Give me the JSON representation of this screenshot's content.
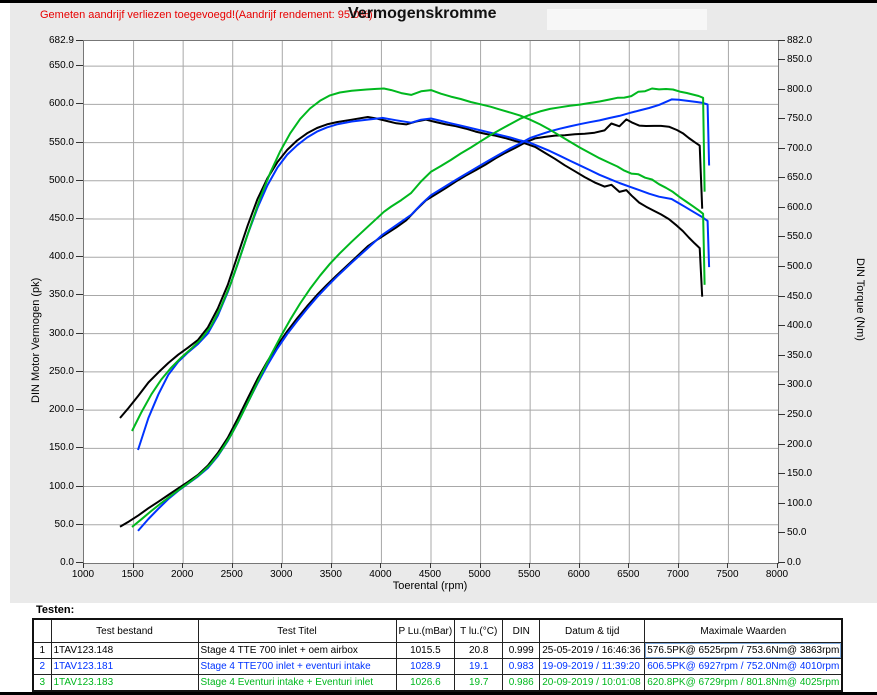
{
  "header": {
    "note": "Gemeten aandrijf verliezen toegevoegd!(Aandrijf rendement: 95.0%)",
    "title": "Vermogenskromme"
  },
  "chart_data": {
    "type": "line",
    "title": "Vermogenskromme",
    "xlabel": "Toerental (rpm)",
    "ylabel_left": "DIN Motor Vermogen (pk)",
    "ylabel_right": "DIN Torque (Nm)",
    "x_range": [
      1000,
      8000
    ],
    "left_axis_max": 682.9,
    "right_axis_max": 882.0,
    "x_ticks": [
      1000,
      1500,
      2000,
      2500,
      3000,
      3500,
      4000,
      4500,
      5000,
      5500,
      6000,
      6500,
      7000,
      7500,
      8000
    ],
    "left_ticks": [
      682.9,
      650.0,
      600.0,
      550.0,
      500.0,
      450.0,
      400.0,
      350.0,
      300.0,
      250.0,
      200.0,
      150.0,
      100.0,
      50.0,
      0.0
    ],
    "right_ticks": [
      882.0,
      850.0,
      800.0,
      750.0,
      700.0,
      650.0,
      600.0,
      550.0,
      500.0,
      450.0,
      400.0,
      350.0,
      300.0,
      250.0,
      200.0,
      150.0,
      100.0,
      50.0,
      0.0
    ],
    "grid": true,
    "power_note": "power curve derived from torque: pk = Nm * rpm / 7024 (both curves per test)",
    "series": [
      {
        "name": "Stage 4 TTE 700  inlet + oem airbox",
        "color": "#000000",
        "max_power": "576.5PK@ 6525rpm",
        "max_torque": "753.6Nm@ 3863rpm",
        "torque_points": [
          [
            1363,
            245
          ],
          [
            1450,
            262
          ],
          [
            1550,
            283
          ],
          [
            1650,
            305
          ],
          [
            1750,
            322
          ],
          [
            1850,
            338
          ],
          [
            1950,
            352
          ],
          [
            2050,
            364
          ],
          [
            2150,
            377
          ],
          [
            2250,
            398
          ],
          [
            2350,
            430
          ],
          [
            2450,
            470
          ],
          [
            2550,
            520
          ],
          [
            2650,
            570
          ],
          [
            2750,
            615
          ],
          [
            2850,
            650
          ],
          [
            2950,
            677
          ],
          [
            3050,
            698
          ],
          [
            3150,
            714
          ],
          [
            3250,
            726
          ],
          [
            3350,
            735
          ],
          [
            3450,
            741
          ],
          [
            3550,
            745
          ],
          [
            3700,
            749
          ],
          [
            3863,
            753.6
          ],
          [
            3950,
            751
          ],
          [
            4050,
            747
          ],
          [
            4150,
            743
          ],
          [
            4250,
            741
          ],
          [
            4350,
            746
          ],
          [
            4450,
            749
          ],
          [
            4550,
            745
          ],
          [
            4650,
            741
          ],
          [
            4750,
            738
          ],
          [
            4850,
            734
          ],
          [
            4950,
            729
          ],
          [
            5050,
            725
          ],
          [
            5150,
            722
          ],
          [
            5250,
            718
          ],
          [
            5350,
            713
          ],
          [
            5450,
            709
          ],
          [
            5550,
            703
          ],
          [
            5650,
            693
          ],
          [
            5750,
            683
          ],
          [
            5850,
            672
          ],
          [
            5950,
            662
          ],
          [
            6050,
            652
          ],
          [
            6150,
            643
          ],
          [
            6250,
            636
          ],
          [
            6320,
            639
          ],
          [
            6400,
            627
          ],
          [
            6470,
            630
          ],
          [
            6525,
            620.5
          ],
          [
            6600,
            609
          ],
          [
            6670,
            602
          ],
          [
            6750,
            595
          ],
          [
            6820,
            589
          ],
          [
            6900,
            581
          ],
          [
            6980,
            570
          ],
          [
            7040,
            561
          ],
          [
            7100,
            550
          ],
          [
            7160,
            540
          ],
          [
            7210,
            532
          ],
          [
            7235,
            450
          ]
        ]
      },
      {
        "name": "Stage 4 TTE700 inlet + eventuri intake",
        "color": "#0033ff",
        "max_power": "606.5PK@ 6927rpm",
        "max_torque": "752.0Nm@ 4010rpm",
        "torque_points": [
          [
            1545,
            191
          ],
          [
            1650,
            245
          ],
          [
            1750,
            285
          ],
          [
            1850,
            318
          ],
          [
            1950,
            340
          ],
          [
            2050,
            356
          ],
          [
            2150,
            370
          ],
          [
            2250,
            388
          ],
          [
            2350,
            418
          ],
          [
            2450,
            458
          ],
          [
            2550,
            505
          ],
          [
            2650,
            555
          ],
          [
            2750,
            600
          ],
          [
            2850,
            638
          ],
          [
            2950,
            668
          ],
          [
            3050,
            690
          ],
          [
            3150,
            706
          ],
          [
            3250,
            719
          ],
          [
            3350,
            729
          ],
          [
            3450,
            736
          ],
          [
            3550,
            741
          ],
          [
            3700,
            746
          ],
          [
            3850,
            749
          ],
          [
            4010,
            752
          ],
          [
            4150,
            748
          ],
          [
            4300,
            744
          ],
          [
            4400,
            749
          ],
          [
            4500,
            751
          ],
          [
            4600,
            747
          ],
          [
            4700,
            743
          ],
          [
            4800,
            739
          ],
          [
            4900,
            735
          ],
          [
            5000,
            731
          ],
          [
            5100,
            727
          ],
          [
            5200,
            723
          ],
          [
            5300,
            719
          ],
          [
            5400,
            714
          ],
          [
            5500,
            710
          ],
          [
            5600,
            703
          ],
          [
            5700,
            696
          ],
          [
            5800,
            688
          ],
          [
            5900,
            680
          ],
          [
            6000,
            672
          ],
          [
            6100,
            664
          ],
          [
            6200,
            656
          ],
          [
            6300,
            649
          ],
          [
            6400,
            642
          ],
          [
            6500,
            636
          ],
          [
            6600,
            630
          ],
          [
            6700,
            624
          ],
          [
            6800,
            619
          ],
          [
            6927,
            615
          ],
          [
            7000,
            608
          ],
          [
            7060,
            602
          ],
          [
            7120,
            596
          ],
          [
            7180,
            590
          ],
          [
            7240,
            584
          ],
          [
            7290,
            578
          ],
          [
            7305,
            500
          ]
        ]
      },
      {
        "name": "Stage 4 Eventuri intake + Eventuri inlet",
        "color": "#00b81e",
        "max_power": "620.8PK@ 6729rpm",
        "max_torque": "801.8Nm@ 4025rpm",
        "torque_points": [
          [
            1484,
            223
          ],
          [
            1580,
            255
          ],
          [
            1680,
            285
          ],
          [
            1780,
            310
          ],
          [
            1880,
            330
          ],
          [
            1980,
            347
          ],
          [
            2080,
            362
          ],
          [
            2180,
            378
          ],
          [
            2280,
            400
          ],
          [
            2380,
            432
          ],
          [
            2480,
            472
          ],
          [
            2580,
            520
          ],
          [
            2680,
            570
          ],
          [
            2780,
            618
          ],
          [
            2880,
            660
          ],
          [
            2980,
            696
          ],
          [
            3080,
            726
          ],
          [
            3180,
            750
          ],
          [
            3280,
            768
          ],
          [
            3380,
            781
          ],
          [
            3480,
            790
          ],
          [
            3580,
            795
          ],
          [
            3700,
            798
          ],
          [
            3850,
            800
          ],
          [
            3950,
            801
          ],
          [
            4025,
            801.8
          ],
          [
            4100,
            799
          ],
          [
            4200,
            794
          ],
          [
            4300,
            791
          ],
          [
            4400,
            797
          ],
          [
            4500,
            799
          ],
          [
            4600,
            793
          ],
          [
            4700,
            788
          ],
          [
            4800,
            784
          ],
          [
            4900,
            779
          ],
          [
            5000,
            775
          ],
          [
            5100,
            771
          ],
          [
            5200,
            766
          ],
          [
            5300,
            761
          ],
          [
            5400,
            756
          ],
          [
            5500,
            749
          ],
          [
            5600,
            741
          ],
          [
            5700,
            732
          ],
          [
            5800,
            722
          ],
          [
            5900,
            712
          ],
          [
            6000,
            702
          ],
          [
            6100,
            693
          ],
          [
            6200,
            684
          ],
          [
            6300,
            676
          ],
          [
            6380,
            670
          ],
          [
            6450,
            663
          ],
          [
            6520,
            658
          ],
          [
            6590,
            657
          ],
          [
            6660,
            651
          ],
          [
            6729,
            648
          ],
          [
            6800,
            640
          ],
          [
            6870,
            634
          ],
          [
            6940,
            627
          ],
          [
            7010,
            618
          ],
          [
            7080,
            610
          ],
          [
            7140,
            603
          ],
          [
            7200,
            596
          ],
          [
            7245,
            590
          ],
          [
            7260,
            470
          ]
        ]
      }
    ]
  },
  "testen_table": {
    "label": "Testen:",
    "columns": [
      "Test bestand",
      "Test Titel",
      "P Lu.(mBar)",
      "T lu.(°C)",
      "DIN",
      "Datum & tijd",
      "Maximale Waarden"
    ],
    "rows": [
      {
        "num": "1",
        "color": "#000000",
        "file": "1TAV123.148",
        "title": "Stage 4 TTE 700  inlet + oem airbox",
        "p_lu": "1015.5",
        "t_lu": "20.8",
        "din": "0.999",
        "datetime": "25-05-2019 / 16:46:36",
        "max": "576.5PK@ 6525rpm / 753.6Nm@ 3863rpm"
      },
      {
        "num": "2",
        "color": "#0033ff",
        "file": "1TAV123.181",
        "title": "Stage 4 TTE700 inlet + eventuri intake",
        "p_lu": "1028.9",
        "t_lu": "19.1",
        "din": "0.983",
        "datetime": "19-09-2019 / 11:39:20",
        "max": "606.5PK@ 6927rpm / 752.0Nm@ 4010rpm"
      },
      {
        "num": "3",
        "color": "#00b81e",
        "file": "1TAV123.183",
        "title": "Stage 4 Eventuri intake + Eventuri inlet",
        "p_lu": "1026.6",
        "t_lu": "19.7",
        "din": "0.986",
        "datetime": "20-09-2019 / 10:01:08",
        "max": "620.8PK@ 6729rpm / 801.8Nm@ 4025rpm"
      }
    ]
  }
}
